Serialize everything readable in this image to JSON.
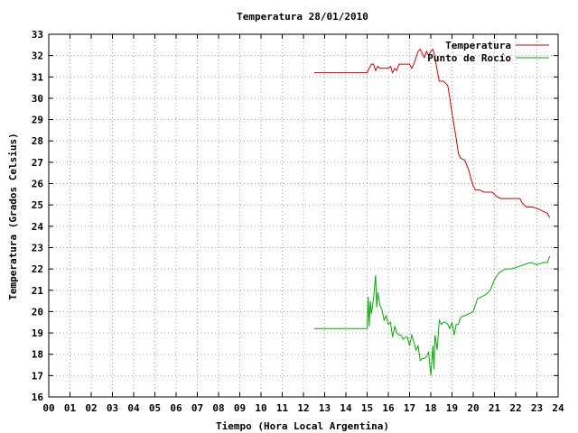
{
  "chart_data": {
    "type": "line",
    "title": "Temperatura 28/01/2010",
    "xlabel": "Tiempo (Hora Local Argentina)",
    "ylabel": "Temperatura (Grados Celsius)",
    "xlim": [
      0,
      24
    ],
    "ylim": [
      16,
      33
    ],
    "x_ticks": [
      0,
      1,
      2,
      3,
      4,
      5,
      6,
      7,
      8,
      9,
      10,
      11,
      12,
      13,
      14,
      15,
      16,
      17,
      18,
      19,
      20,
      21,
      22,
      23,
      24
    ],
    "x_tick_labels": [
      "00",
      "01",
      "02",
      "03",
      "04",
      "05",
      "06",
      "07",
      "08",
      "09",
      "10",
      "11",
      "12",
      "13",
      "14",
      "15",
      "16",
      "17",
      "18",
      "19",
      "20",
      "21",
      "22",
      "23",
      "24"
    ],
    "y_ticks": [
      16,
      17,
      18,
      19,
      20,
      21,
      22,
      23,
      24,
      25,
      26,
      27,
      28,
      29,
      30,
      31,
      32,
      33
    ],
    "y_tick_labels": [
      "16",
      "17",
      "18",
      "19",
      "20",
      "21",
      "22",
      "23",
      "24",
      "25",
      "26",
      "27",
      "28",
      "29",
      "30",
      "31",
      "32",
      "33"
    ],
    "grid": true,
    "legend_position": "top-right",
    "series": [
      {
        "name": "Temperatura",
        "color": "#cc0000",
        "x": [
          12.5,
          15.0,
          15.1,
          15.2,
          15.3,
          15.4,
          15.5,
          15.6,
          15.8,
          16.0,
          16.1,
          16.2,
          16.3,
          16.4,
          16.5,
          16.7,
          17.0,
          17.1,
          17.2,
          17.3,
          17.4,
          17.5,
          17.6,
          17.7,
          17.8,
          17.9,
          18.0,
          18.1,
          18.2,
          18.3,
          18.4,
          18.6,
          18.8,
          18.9,
          19.0,
          19.1,
          19.2,
          19.3,
          19.4,
          19.6,
          19.8,
          19.9,
          20.0,
          20.1,
          20.2,
          20.3,
          20.5,
          20.9,
          21.1,
          21.3,
          21.5,
          21.8,
          22.2,
          22.3,
          22.5,
          22.8,
          23.1,
          23.3,
          23.5,
          23.6
        ],
        "y": [
          31.2,
          31.2,
          31.4,
          31.6,
          31.6,
          31.3,
          31.5,
          31.4,
          31.4,
          31.4,
          31.5,
          31.2,
          31.4,
          31.3,
          31.6,
          31.6,
          31.6,
          31.4,
          31.6,
          31.9,
          32.2,
          32.3,
          32.1,
          31.9,
          32.2,
          32.0,
          32.2,
          32.3,
          31.9,
          31.3,
          30.8,
          30.8,
          30.6,
          30.0,
          29.3,
          28.7,
          28.1,
          27.4,
          27.2,
          27.1,
          26.6,
          26.2,
          25.9,
          25.7,
          25.7,
          25.7,
          25.6,
          25.6,
          25.4,
          25.3,
          25.3,
          25.3,
          25.3,
          25.1,
          24.9,
          24.9,
          24.8,
          24.7,
          24.6,
          24.4
        ]
      },
      {
        "name": "Punto de Rocío",
        "color": "#00aa00",
        "x": [
          12.5,
          14.8,
          15.0,
          15.05,
          15.1,
          15.15,
          15.2,
          15.3,
          15.4,
          15.45,
          15.5,
          15.6,
          15.7,
          15.8,
          15.9,
          16.0,
          16.1,
          16.2,
          16.3,
          16.4,
          16.5,
          16.6,
          16.7,
          16.8,
          16.9,
          17.0,
          17.1,
          17.2,
          17.3,
          17.4,
          17.5,
          17.6,
          17.7,
          17.8,
          17.9,
          18.0,
          18.05,
          18.1,
          18.15,
          18.2,
          18.3,
          18.4,
          18.5,
          18.6,
          18.7,
          18.8,
          18.9,
          19.0,
          19.1,
          19.2,
          19.3,
          19.4,
          19.5,
          19.6,
          19.8,
          20.0,
          20.2,
          20.4,
          20.6,
          20.8,
          21.0,
          21.2,
          21.5,
          21.8,
          22.1,
          22.4,
          22.7,
          23.0,
          23.3,
          23.5,
          23.6
        ],
        "y": [
          19.2,
          19.2,
          19.2,
          20.7,
          19.3,
          20.5,
          19.9,
          20.6,
          21.7,
          20.2,
          20.9,
          20.3,
          20.1,
          19.6,
          19.8,
          19.4,
          19.5,
          18.8,
          19.3,
          19.0,
          18.9,
          18.9,
          18.7,
          18.8,
          18.8,
          18.4,
          18.9,
          18.6,
          18.2,
          18.4,
          17.7,
          17.8,
          17.8,
          17.9,
          18.1,
          17.0,
          17.7,
          18.4,
          17.3,
          18.9,
          18.2,
          19.6,
          19.4,
          19.5,
          19.5,
          19.4,
          19.2,
          19.5,
          18.9,
          19.4,
          19.4,
          19.7,
          19.8,
          19.8,
          19.9,
          20.0,
          20.6,
          20.7,
          20.8,
          21.0,
          21.5,
          21.8,
          22.0,
          22.0,
          22.1,
          22.2,
          22.3,
          22.2,
          22.3,
          22.3,
          22.6
        ]
      }
    ]
  }
}
